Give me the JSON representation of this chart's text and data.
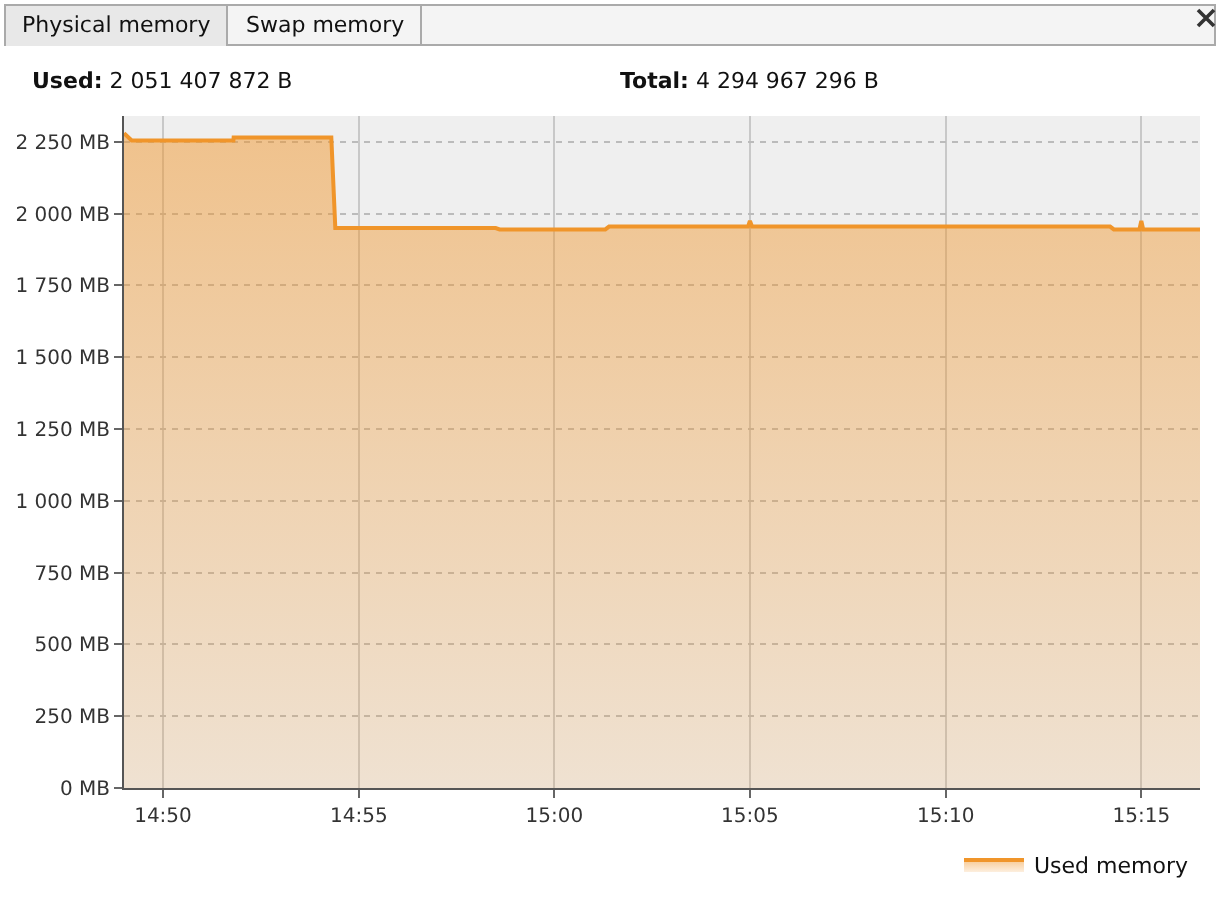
{
  "chart_data": {
    "type": "area",
    "annotations": [
      "Physical memory",
      "Swap memory",
      "Used: 2 051 407 872 B",
      "Total: 4 294 967 296 B"
    ],
    "x": [
      14.8167,
      14.82,
      14.8633,
      14.8634,
      14.905,
      14.9067,
      14.975,
      14.9767,
      15.0217,
      15.0233,
      15.0825,
      15.0833,
      15.0842,
      15.2367,
      15.2383,
      15.2492,
      15.25,
      15.2508,
      15.275
    ],
    "series": [
      {
        "name": "Used memory",
        "color": "#f0952a",
        "values": [
          2280,
          2255,
          2255,
          2265,
          2265,
          1950,
          1950,
          1945,
          1945,
          1955,
          1955,
          1975,
          1955,
          1955,
          1945,
          1945,
          1975,
          1945,
          1945
        ]
      }
    ],
    "xlim": [
      14.8167,
      15.275
    ],
    "xticks": [
      {
        "value": 14.8333,
        "label": "14:50"
      },
      {
        "value": 14.9167,
        "label": "14:55"
      },
      {
        "value": 15,
        "label": "15:00"
      },
      {
        "value": 15.0833,
        "label": "15:05"
      },
      {
        "value": 15.1667,
        "label": "15:10"
      },
      {
        "value": 15.25,
        "label": "15:15"
      }
    ],
    "ylim": [
      0,
      2340
    ],
    "yticks": [
      {
        "value": 0,
        "label": "0 MB"
      },
      {
        "value": 250,
        "label": "250 MB"
      },
      {
        "value": 500,
        "label": "500 MB"
      },
      {
        "value": 750,
        "label": "750 MB"
      },
      {
        "value": 1000,
        "label": "1 000 MB"
      },
      {
        "value": 1250,
        "label": "1 250 MB"
      },
      {
        "value": 1500,
        "label": "1 500 MB"
      },
      {
        "value": 1750,
        "label": "1 750 MB"
      },
      {
        "value": 2000,
        "label": "2 000 MB"
      },
      {
        "value": 2250,
        "label": "2 250 MB"
      }
    ],
    "grid": true,
    "legend": "bottom right"
  }
}
